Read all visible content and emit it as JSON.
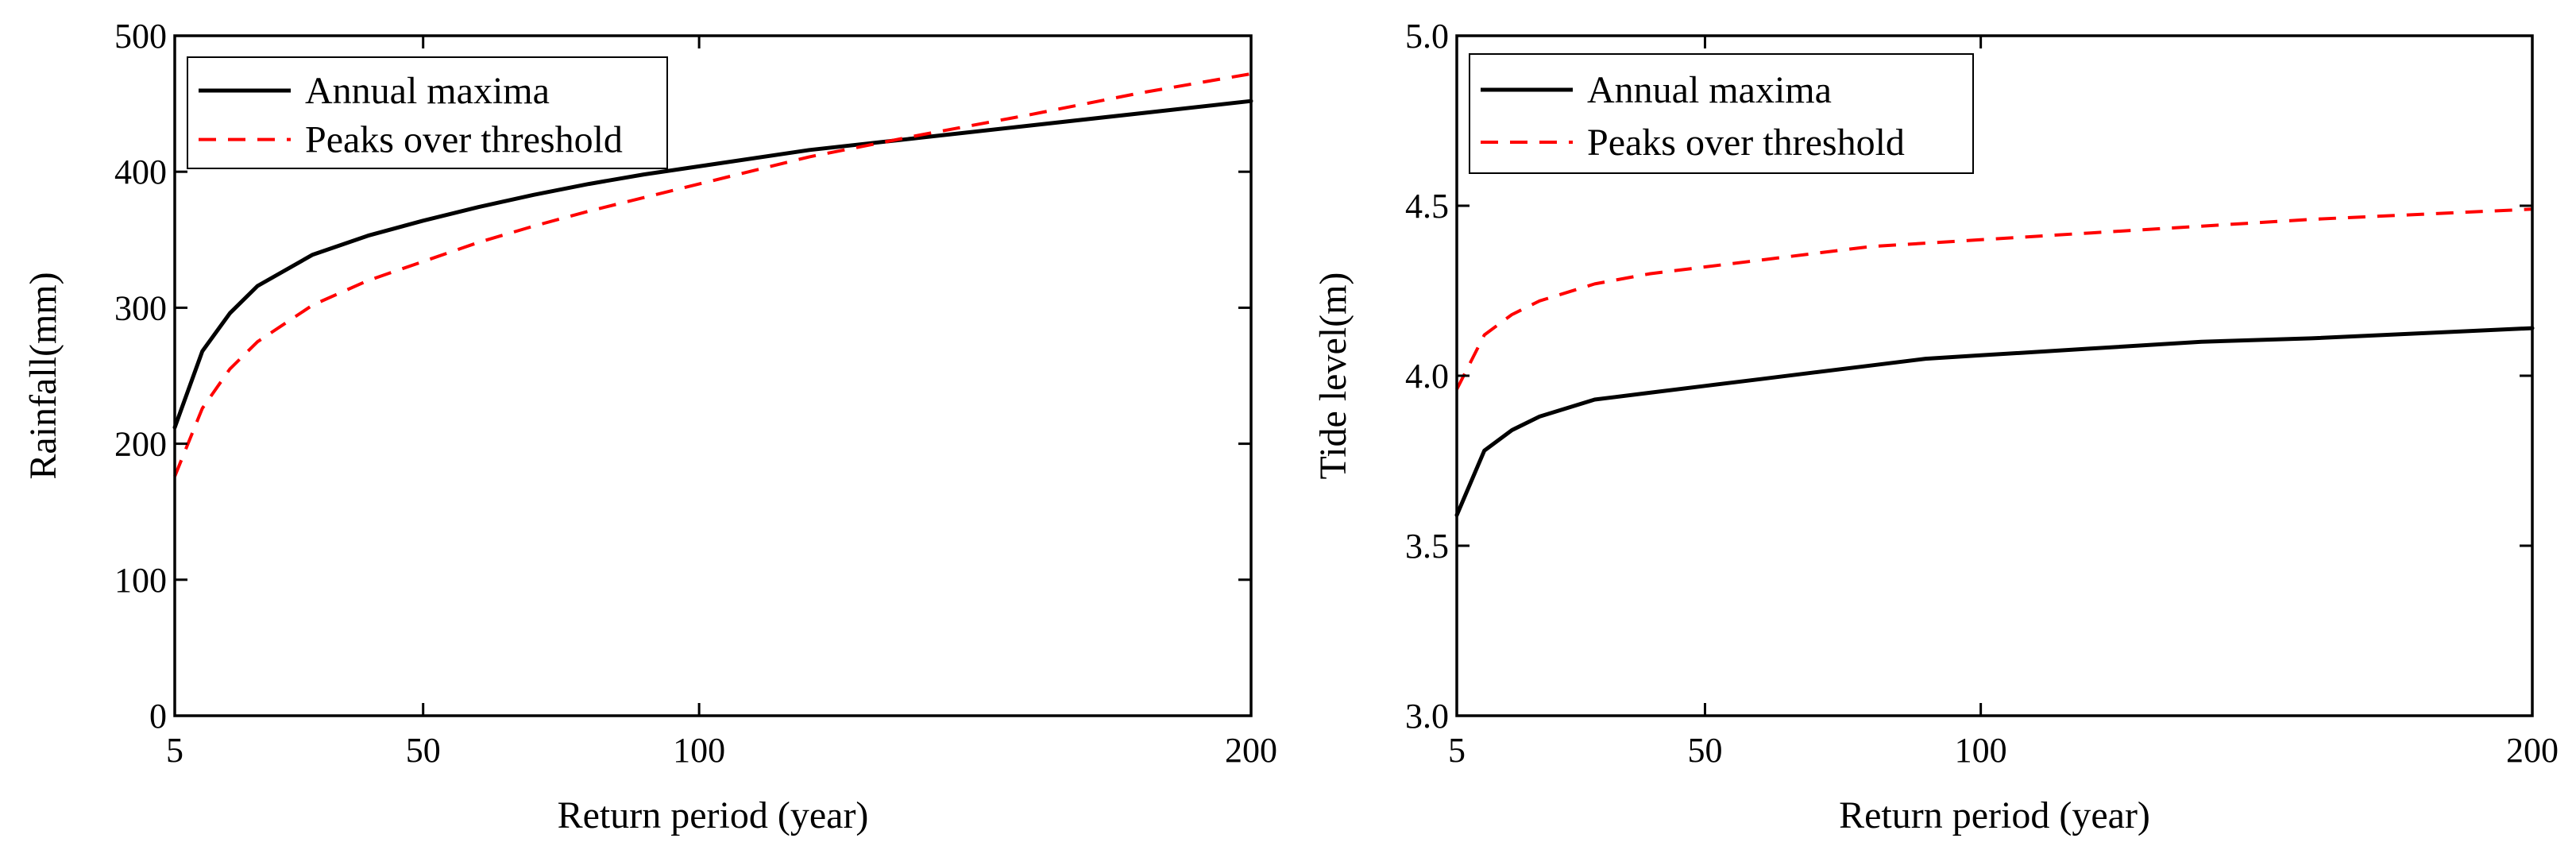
{
  "chart_data": [
    {
      "type": "line",
      "xlabel": "Return period (year)",
      "ylabel": "Rainfall(mm)",
      "xlim": [
        5,
        200
      ],
      "ylim": [
        0,
        500
      ],
      "xticks": [
        5,
        50,
        100,
        200
      ],
      "yticks": [
        0,
        100,
        200,
        300,
        400,
        500
      ],
      "ytick_labels": [
        "0",
        "100",
        "200",
        "300",
        "400",
        "500"
      ],
      "grid": false,
      "legend_position": "top-left",
      "series": [
        {
          "name": "Annual maxima",
          "color": "#000000",
          "style": "solid",
          "x": [
            5,
            10,
            15,
            20,
            30,
            40,
            50,
            60,
            70,
            80,
            90,
            100,
            120,
            140,
            160,
            180,
            200
          ],
          "y": [
            212,
            268,
            296,
            316,
            339,
            353,
            364,
            374,
            383,
            391,
            398,
            404,
            416,
            425,
            434,
            443,
            452
          ]
        },
        {
          "name": "Peaks over threshold",
          "color": "#ff0000",
          "style": "dashed",
          "x": [
            5,
            10,
            15,
            20,
            30,
            40,
            50,
            60,
            70,
            80,
            90,
            100,
            120,
            140,
            160,
            180,
            200
          ],
          "y": [
            176,
            226,
            255,
            275,
            302,
            320,
            334,
            348,
            360,
            371,
            381,
            391,
            411,
            427,
            442,
            458,
            472
          ]
        }
      ]
    },
    {
      "type": "line",
      "xlabel": "Return period (year)",
      "ylabel": "Tide level(m)",
      "xlim": [
        5,
        200
      ],
      "ylim": [
        3.0,
        5.0
      ],
      "xticks": [
        5,
        50,
        100,
        200
      ],
      "yticks": [
        3.0,
        3.5,
        4.0,
        4.5,
        5.0
      ],
      "ytick_labels": [
        "3.0",
        "3.5",
        "4.0",
        "4.5",
        "5.0"
      ],
      "grid": false,
      "legend_position": "top-left",
      "series": [
        {
          "name": "Annual maxima",
          "color": "#000000",
          "style": "solid",
          "x": [
            5,
            10,
            15,
            20,
            30,
            40,
            50,
            60,
            70,
            80,
            90,
            100,
            120,
            140,
            160,
            180,
            200
          ],
          "y": [
            3.59,
            3.78,
            3.84,
            3.88,
            3.93,
            3.95,
            3.97,
            3.99,
            4.01,
            4.03,
            4.05,
            4.06,
            4.08,
            4.1,
            4.11,
            4.125,
            4.14
          ]
        },
        {
          "name": "Peaks over threshold",
          "color": "#ff0000",
          "style": "dashed",
          "x": [
            5,
            10,
            15,
            20,
            30,
            40,
            50,
            60,
            70,
            80,
            90,
            100,
            120,
            140,
            160,
            180,
            200
          ],
          "y": [
            3.96,
            4.12,
            4.18,
            4.22,
            4.27,
            4.3,
            4.32,
            4.34,
            4.36,
            4.38,
            4.39,
            4.4,
            4.42,
            4.44,
            4.46,
            4.475,
            4.49
          ]
        }
      ]
    }
  ]
}
